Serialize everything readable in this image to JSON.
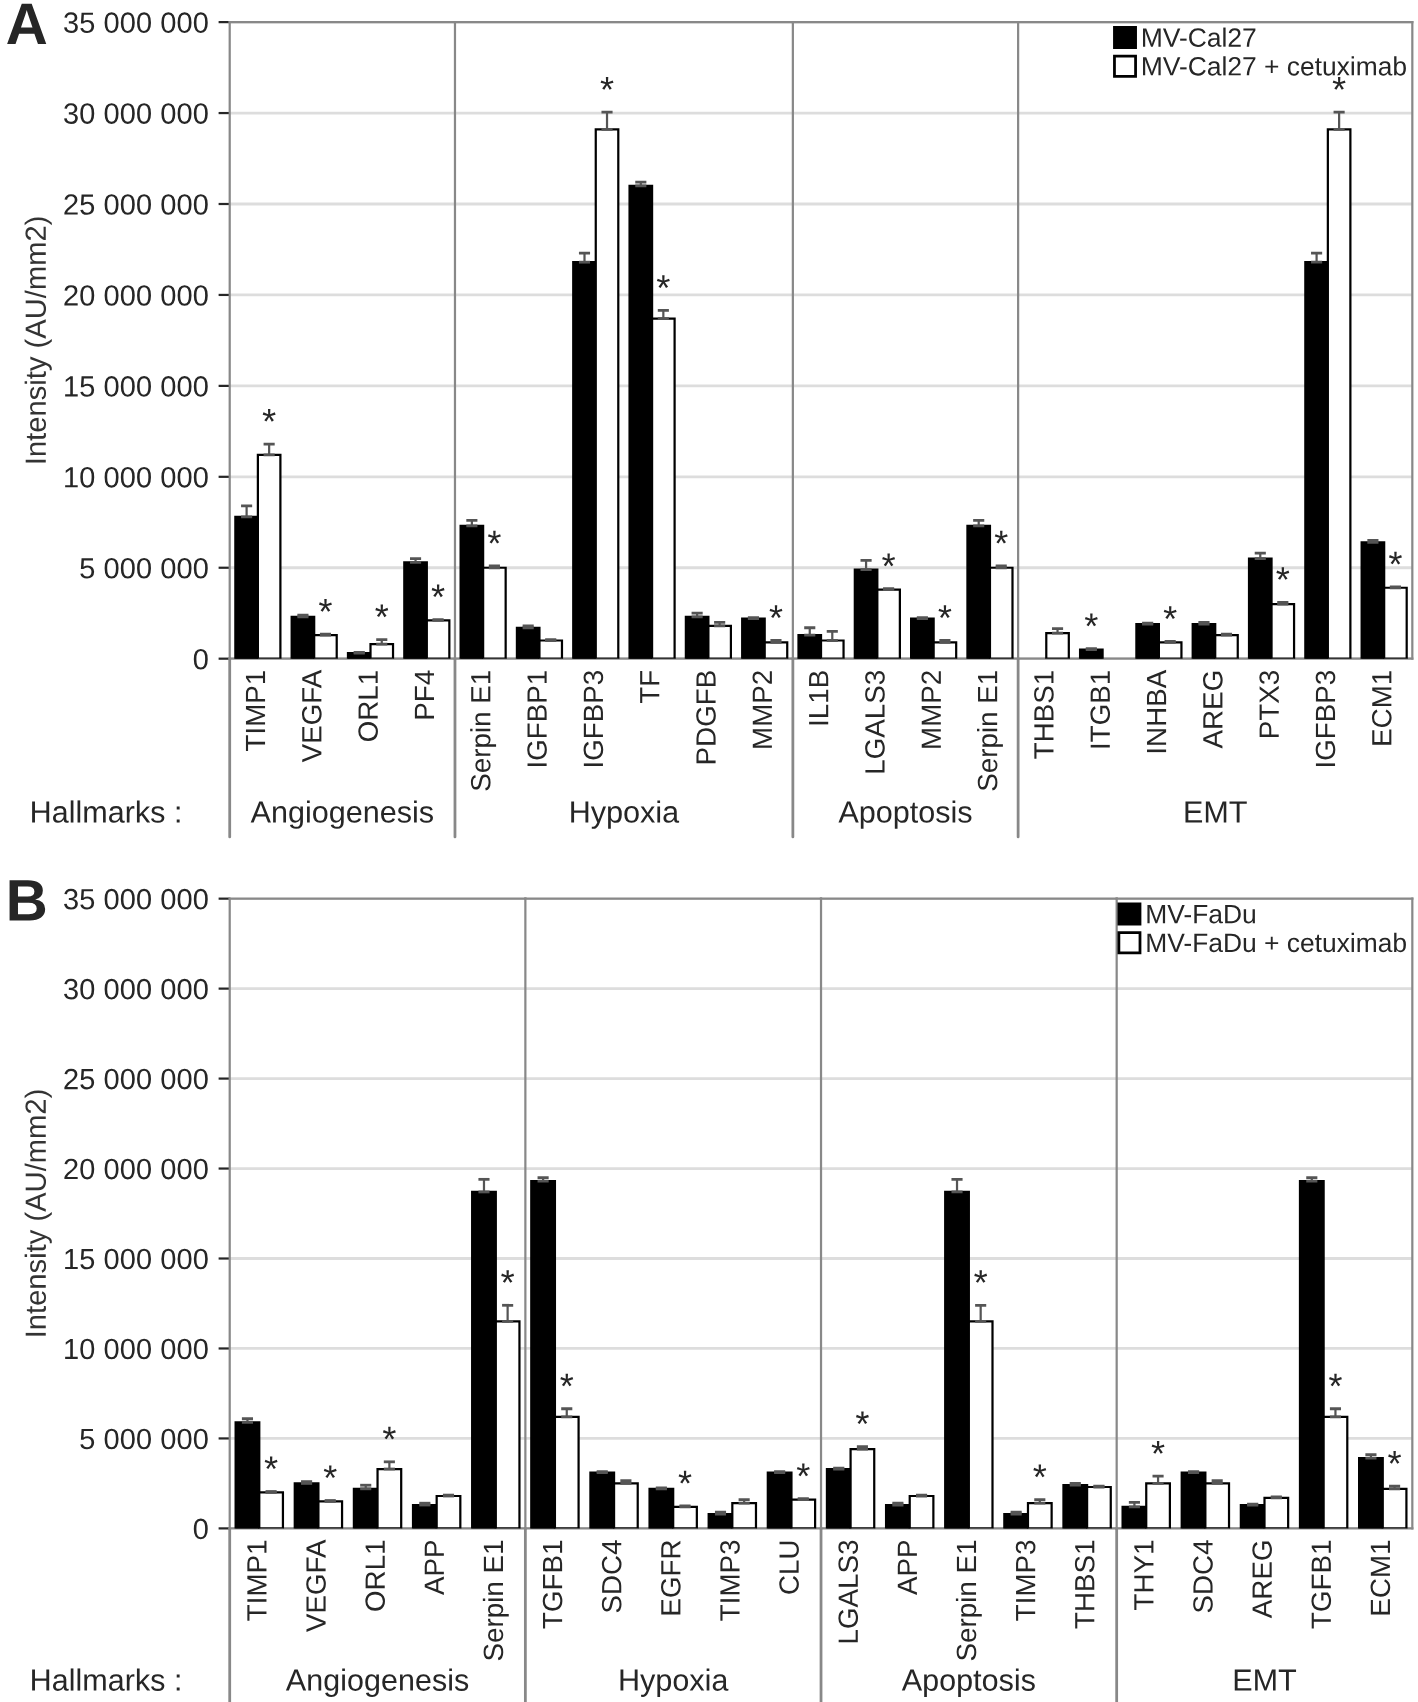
{
  "chart_data": [
    {
      "type": "bar",
      "title": "A",
      "ylabel": "Intensity (AU/mm2)",
      "xlabel": "Angiogenesis",
      "annotations": [
        "Hallmarks :"
      ],
      "categories": [
        "TIMP1",
        "VEGFA",
        "ORL1",
        "PF4"
      ],
      "series": [
        {
          "color": "#000000",
          "values": [
            7800000,
            2300000,
            300000,
            5300000
          ],
          "errors": [
            600000,
            100000,
            50000,
            200000
          ]
        },
        {
          "color": "#ffffff",
          "values": [
            11200000,
            1300000,
            800000,
            2100000
          ],
          "errors": [
            600000,
            50000,
            250000,
            50000
          ],
          "value_labels": [
            "*",
            "*",
            "*",
            "*"
          ]
        }
      ],
      "ylim": [
        0,
        35000000
      ],
      "yticks": [
        {
          "value": 0,
          "label": "0"
        },
        {
          "value": 5000000,
          "label": "5 000 000"
        },
        {
          "value": 10000000,
          "label": "10 000 000"
        },
        {
          "value": 15000000,
          "label": "15 000 000"
        },
        {
          "value": 20000000,
          "label": "20 000 000"
        },
        {
          "value": 25000000,
          "label": "25 000 000"
        },
        {
          "value": 30000000,
          "label": "30 000 000"
        },
        {
          "value": 35000000,
          "label": "35 000 000"
        }
      ],
      "grid": "y"
    },
    {
      "type": "bar",
      "xlabel": "Hypoxia",
      "tick_labels": "x",
      "ylim": [
        0,
        35000000
      ],
      "grid": "y",
      "categories": [
        "Serpin E1",
        "IGFBP1",
        "IGFBP3",
        "TF",
        "PDGFB",
        "MMP2"
      ],
      "series": [
        {
          "color": "#000000",
          "values": [
            7300000,
            1700000,
            21800000,
            26000000,
            2300000,
            2200000
          ],
          "errors": [
            300000,
            100000,
            500000,
            200000,
            200000,
            50000
          ]
        },
        {
          "color": "#ffffff",
          "values": [
            5000000,
            1000000,
            29100000,
            18700000,
            1800000,
            900000
          ],
          "errors": [
            100000,
            50000,
            950000,
            450000,
            200000,
            100000
          ],
          "value_labels": [
            "*",
            null,
            "*",
            "*",
            null,
            "*"
          ]
        }
      ]
    },
    {
      "type": "bar",
      "xlabel": "Apoptosis",
      "tick_labels": "x",
      "ylim": [
        0,
        35000000
      ],
      "grid": "y",
      "categories": [
        "IL1B",
        "LGALS3",
        "MMP2",
        "Serpin E1"
      ],
      "series": [
        {
          "color": "#000000",
          "values": [
            1300000,
            4900000,
            2200000,
            7300000
          ],
          "errors": [
            400000,
            500000,
            50000,
            300000
          ]
        },
        {
          "color": "#ffffff",
          "values": [
            1000000,
            3800000,
            900000,
            5000000
          ],
          "errors": [
            500000,
            50000,
            100000,
            100000
          ],
          "value_labels": [
            null,
            "*",
            "*",
            "*"
          ]
        }
      ]
    },
    {
      "type": "bar",
      "xlabel": "EMT",
      "tick_labels": "x",
      "ylim": [
        0,
        35000000
      ],
      "grid": "y",
      "legend": "top right",
      "categories": [
        "THBS1",
        "ITGB1",
        "INHBA",
        "AREG",
        "PTX3",
        "IGFBP3",
        "ECM1"
      ],
      "series": [
        {
          "name": "MV-Cal27",
          "color": "#000000",
          "values": [
            0,
            500000,
            1900000,
            1900000,
            5500000,
            21800000,
            6400000
          ],
          "errors": [
            null,
            50000,
            50000,
            100000,
            300000,
            500000,
            100000
          ],
          "value_labels": [
            null,
            "*",
            null,
            null,
            null,
            null,
            null
          ]
        },
        {
          "name": "MV-Cal27 + cetuximab",
          "color": "#ffffff",
          "values": [
            1400000,
            0,
            900000,
            1300000,
            3000000,
            29100000,
            3900000
          ],
          "errors": [
            250000,
            null,
            50000,
            50000,
            100000,
            950000,
            50000
          ],
          "value_labels": [
            null,
            null,
            "*",
            null,
            "*",
            "*",
            "*"
          ]
        }
      ]
    },
    {
      "type": "bar",
      "title": "B",
      "ylabel": "Intensity (AU/mm2)",
      "xlabel": "Angiogenesis",
      "annotations": [
        "Hallmarks :"
      ],
      "categories": [
        "TIMP1",
        "VEGFA",
        "ORL1",
        "APP",
        "Serpin E1"
      ],
      "series": [
        {
          "color": "#000000",
          "values": [
            5900000,
            2500000,
            2200000,
            1300000,
            18700000
          ],
          "errors": [
            200000,
            100000,
            200000,
            100000,
            700000
          ]
        },
        {
          "color": "#ffffff",
          "values": [
            2000000,
            1500000,
            3300000,
            1800000,
            11500000
          ],
          "errors": [
            50000,
            50000,
            400000,
            50000,
            900000
          ],
          "value_labels": [
            "*",
            "*",
            "*",
            null,
            "*"
          ]
        }
      ],
      "ylim": [
        0,
        35000000
      ],
      "yticks": [
        {
          "value": 0,
          "label": "0"
        },
        {
          "value": 5000000,
          "label": "5 000 000"
        },
        {
          "value": 10000000,
          "label": "10 000 000"
        },
        {
          "value": 15000000,
          "label": "15 000 000"
        },
        {
          "value": 20000000,
          "label": "20 000 000"
        },
        {
          "value": 25000000,
          "label": "25 000 000"
        },
        {
          "value": 30000000,
          "label": "30 000 000"
        },
        {
          "value": 35000000,
          "label": "35 000 000"
        }
      ],
      "grid": "y"
    },
    {
      "type": "bar",
      "xlabel": "Hypoxia",
      "tick_labels": "x",
      "ylim": [
        0,
        35000000
      ],
      "grid": "y",
      "categories": [
        "TGFB1",
        "SDC4",
        "EGFR",
        "TIMP3",
        "CLU"
      ],
      "series": [
        {
          "color": "#000000",
          "values": [
            19300000,
            3100000,
            2200000,
            800000,
            3100000
          ],
          "errors": [
            200000,
            50000,
            50000,
            100000,
            50000
          ]
        },
        {
          "color": "#ffffff",
          "values": [
            6200000,
            2500000,
            1200000,
            1400000,
            1600000
          ],
          "errors": [
            450000,
            150000,
            50000,
            200000,
            50000
          ],
          "value_labels": [
            "*",
            null,
            "*",
            null,
            "*"
          ]
        }
      ]
    },
    {
      "type": "bar",
      "xlabel": "Apoptosis",
      "tick_labels": "x",
      "ylim": [
        0,
        35000000
      ],
      "grid": "y",
      "categories": [
        "LGALS3",
        "APP",
        "Serpin E1",
        "TIMP3",
        "THBS1"
      ],
      "series": [
        {
          "color": "#000000",
          "values": [
            3300000,
            1300000,
            18700000,
            800000,
            2400000
          ],
          "errors": [
            50000,
            100000,
            700000,
            100000,
            100000
          ]
        },
        {
          "color": "#ffffff",
          "values": [
            4400000,
            1800000,
            11500000,
            1400000,
            2300000
          ],
          "errors": [
            150000,
            50000,
            900000,
            200000,
            50000
          ],
          "value_labels": [
            "*",
            null,
            "*",
            "*",
            null
          ]
        }
      ]
    },
    {
      "type": "bar",
      "xlabel": "EMT",
      "tick_labels": "x",
      "ylim": [
        0,
        35000000
      ],
      "grid": "y",
      "legend": "top right",
      "categories": [
        "THY1",
        "SDC4",
        "AREG",
        "TGFB1",
        "ECM1"
      ],
      "series": [
        {
          "name": "MV-FaDu",
          "color": "#000000",
          "values": [
            1200000,
            3100000,
            1300000,
            19300000,
            3900000
          ],
          "errors": [
            250000,
            50000,
            50000,
            200000,
            200000
          ]
        },
        {
          "name": "MV-FaDu + cetuximab",
          "color": "#ffffff",
          "values": [
            2500000,
            2500000,
            1700000,
            6200000,
            2200000
          ],
          "errors": [
            400000,
            150000,
            50000,
            450000,
            150000
          ],
          "value_labels": [
            "*",
            null,
            null,
            "*",
            "*"
          ]
        }
      ]
    }
  ]
}
